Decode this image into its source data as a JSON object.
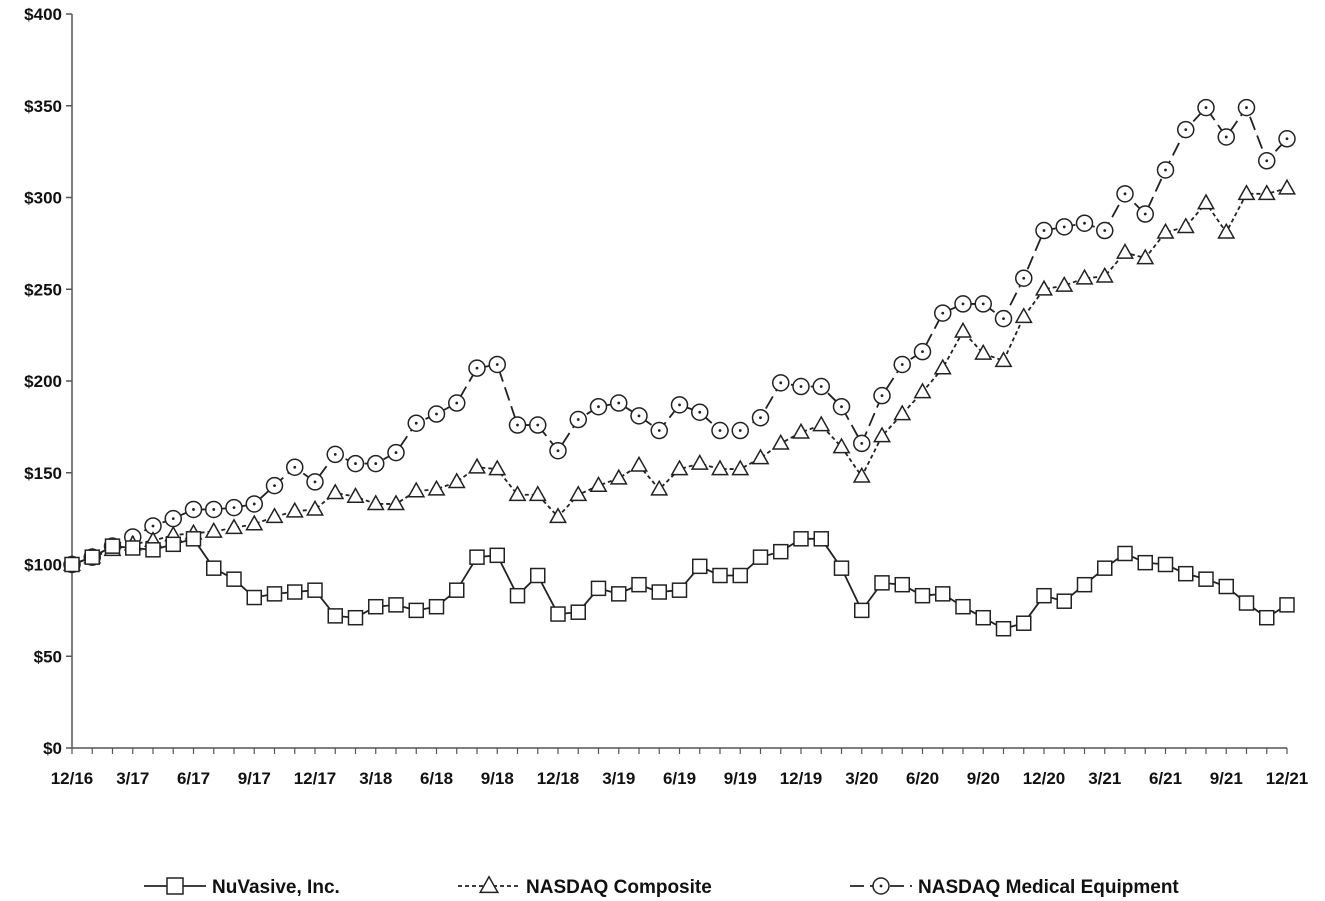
{
  "chart_data": {
    "type": "line",
    "xlabel": "",
    "ylabel": "",
    "ylim": [
      0,
      400
    ],
    "y_ticks": [
      0,
      50,
      100,
      150,
      200,
      250,
      300,
      350,
      400
    ],
    "y_tick_labels": [
      "$0",
      "$50",
      "$100",
      "$150",
      "$200",
      "$250",
      "$300",
      "$350",
      "$400"
    ],
    "x_tick_labels": [
      "12/16",
      "3/17",
      "6/17",
      "9/17",
      "12/17",
      "3/18",
      "6/18",
      "9/18",
      "12/18",
      "3/19",
      "6/19",
      "9/19",
      "12/19",
      "3/20",
      "6/20",
      "9/20",
      "12/20",
      "3/21",
      "6/21",
      "9/21",
      "12/21"
    ],
    "grid": false,
    "legend_position": "bottom",
    "series": [
      {
        "name": "NuVasive, Inc.",
        "marker": "square",
        "dash": "solid",
        "values": [
          100,
          104,
          110,
          109,
          108,
          111,
          114,
          98,
          92,
          82,
          84,
          85,
          86,
          72,
          71,
          77,
          78,
          75,
          77,
          86,
          104,
          105,
          83,
          94,
          73,
          74,
          87,
          84,
          89,
          85,
          86,
          99,
          94,
          94,
          104,
          107,
          114,
          114,
          98,
          75,
          90,
          89,
          83,
          84,
          77,
          71,
          65,
          68,
          83,
          80,
          89,
          98,
          106,
          101,
          100,
          95,
          92,
          88,
          79,
          71,
          78
        ]
      },
      {
        "name": "NASDAQ Composite",
        "marker": "triangle",
        "dash": "dashed-short",
        "values": [
          100,
          104,
          108,
          111,
          113,
          116,
          117,
          118,
          120,
          122,
          126,
          129,
          130,
          139,
          137,
          133,
          133,
          140,
          141,
          145,
          153,
          152,
          138,
          138,
          126,
          138,
          143,
          147,
          154,
          141,
          152,
          155,
          152,
          152,
          158,
          166,
          172,
          176,
          164,
          148,
          170,
          182,
          194,
          207,
          227,
          215,
          211,
          235,
          250,
          252,
          256,
          257,
          270,
          267,
          281,
          284,
          297,
          281,
          302,
          302,
          305
        ]
      },
      {
        "name": "NASDAQ Medical Equipment",
        "marker": "circle",
        "dash": "dashed-long",
        "values": [
          100,
          104,
          110,
          115,
          121,
          125,
          130,
          130,
          131,
          133,
          143,
          153,
          145,
          160,
          155,
          155,
          161,
          177,
          182,
          188,
          207,
          209,
          176,
          176,
          162,
          179,
          186,
          188,
          181,
          173,
          187,
          183,
          173,
          173,
          180,
          199,
          197,
          197,
          186,
          166,
          192,
          209,
          216,
          237,
          242,
          242,
          234,
          256,
          282,
          284,
          286,
          282,
          302,
          291,
          315,
          337,
          349,
          333,
          349,
          320,
          332
        ]
      }
    ]
  }
}
